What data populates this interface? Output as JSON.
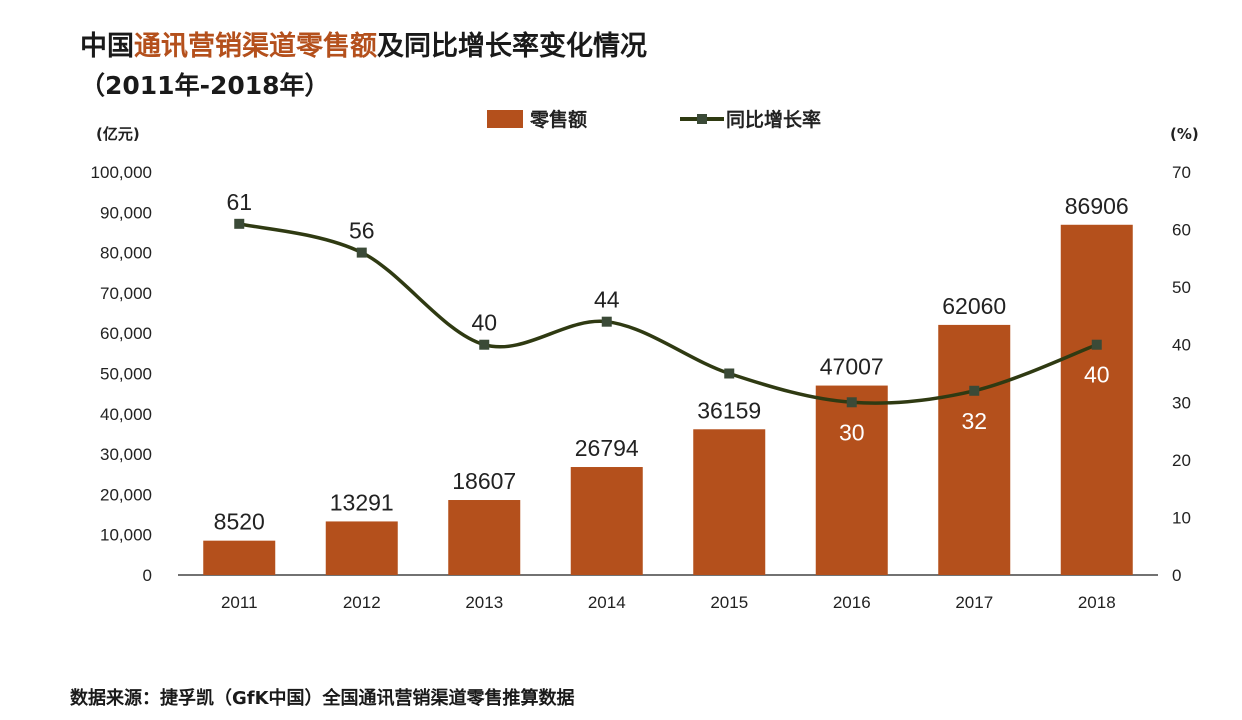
{
  "title": {
    "prefix": "中国",
    "highlight": "通讯营销渠道零售额",
    "suffix": "及同比增长率变化情况"
  },
  "subtitle": "（2011年-2018年）",
  "source": "数据来源：捷孚凯（GfK中国）全国通讯营销渠道零售推算数据",
  "chart_data": {
    "type": "bar",
    "categories": [
      "2011",
      "2012",
      "2013",
      "2014",
      "2015",
      "2016",
      "2017",
      "2018"
    ],
    "series": [
      {
        "name": "零售额",
        "type": "bar",
        "axis": "left",
        "color": "#b4501c",
        "values": [
          8520,
          13291,
          18607,
          26794,
          36159,
          47007,
          62060,
          86906
        ],
        "labels": [
          "8520",
          "13291",
          "18607",
          "26794",
          "36159",
          "47007",
          "62060",
          "86906"
        ]
      },
      {
        "name": "同比增长率",
        "type": "line",
        "axis": "right",
        "color": "#2f3a12",
        "values": [
          61,
          56,
          40,
          44,
          35,
          30,
          32,
          40
        ],
        "labels": [
          "61",
          "56",
          "40",
          "44",
          "",
          "30",
          "32",
          "40"
        ]
      }
    ],
    "left_axis": {
      "unit": "(亿元)",
      "ylim": [
        0,
        100000
      ],
      "ticks": [
        0,
        10000,
        20000,
        30000,
        40000,
        50000,
        60000,
        70000,
        80000,
        90000,
        100000
      ],
      "tick_labels": [
        "0",
        "10,000",
        "20,000",
        "30,000",
        "40,000",
        "50,000",
        "60,000",
        "70,000",
        "80,000",
        "90,000",
        "100,000"
      ]
    },
    "right_axis": {
      "unit": "(%)",
      "ylim": [
        0,
        70
      ],
      "ticks": [
        0,
        10,
        20,
        30,
        40,
        50,
        60,
        70
      ],
      "tick_labels": [
        "0",
        "10",
        "20",
        "30",
        "40",
        "50",
        "60",
        "70"
      ]
    },
    "legend": {
      "position": "top-center",
      "grid": false
    }
  }
}
